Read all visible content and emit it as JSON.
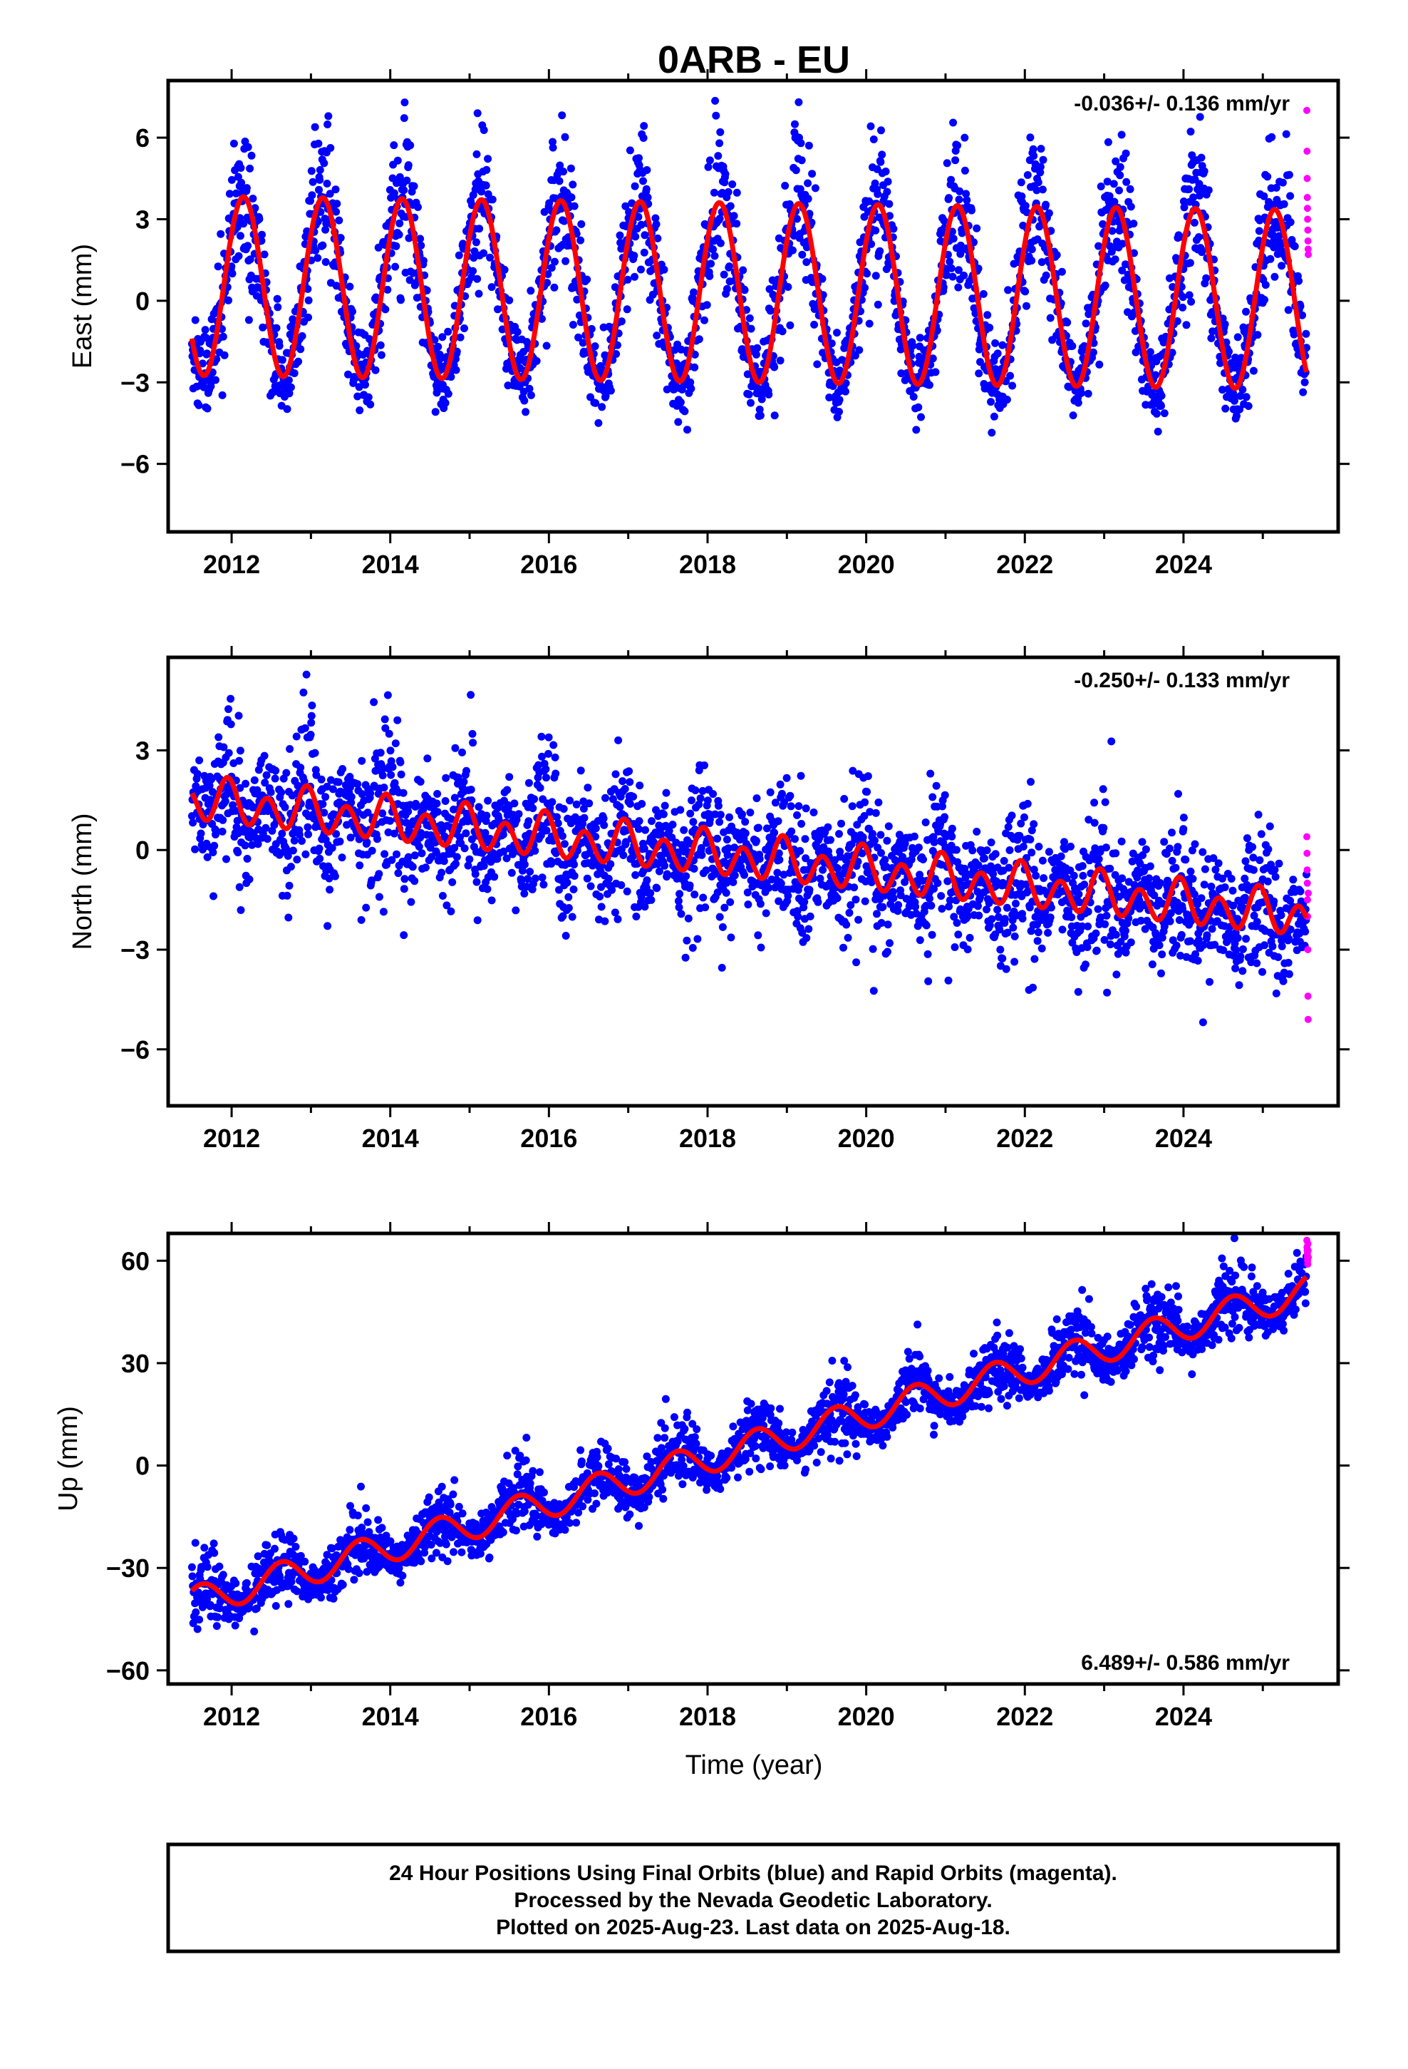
{
  "title": "0ARB - EU",
  "colors": {
    "final_orbits": "#0000ff",
    "rapid_orbits": "#ff00ff",
    "model": "#ff0000"
  },
  "chart_data": [
    {
      "type": "scatter",
      "panel": "east",
      "ylabel": "East (mm)",
      "xlabel": "",
      "rate_label": "-0.036+/- 0.136 mm/yr",
      "xlim": [
        2011.2,
        2025.95
      ],
      "ylim": [
        -8.5,
        8.1
      ],
      "yticks": [
        -6,
        -3,
        0,
        3,
        6
      ],
      "ytick_labels": [
        "−6",
        "−3",
        "0",
        "3",
        "6"
      ],
      "xticks": [
        2012,
        2014,
        2016,
        2018,
        2020,
        2022,
        2024
      ],
      "xtick_labels": [
        "2012",
        "2014",
        "2016",
        "2018",
        "2020",
        "2022",
        "2024"
      ],
      "series": [
        {
          "name": "Final Orbits",
          "color": "#0000ff",
          "summary": {
            "start": 2011.5,
            "end": 2025.55,
            "scatter_sd": 1.1
          }
        },
        {
          "name": "Rapid Orbits",
          "color": "#ff00ff",
          "values": [
            7.0,
            5.5,
            4.5,
            3.8,
            3.4,
            3.0,
            2.6,
            2.2,
            1.9,
            1.7
          ]
        },
        {
          "name": "Model",
          "color": "#ff0000",
          "model": {
            "offset": 0.3,
            "trend": -0.036,
            "t0": 2018.5,
            "annual_amp": 3.3,
            "annual_phase": 2018.15,
            "semiannual_amp": 0.0
          }
        }
      ]
    },
    {
      "type": "scatter",
      "panel": "north",
      "ylabel": "North (mm)",
      "xlabel": "",
      "rate_label": "-0.250+/- 0.133 mm/yr",
      "xlim": [
        2011.2,
        2025.95
      ],
      "ylim": [
        -7.7,
        5.8
      ],
      "yticks": [
        -6,
        -3,
        0,
        3
      ],
      "ytick_labels": [
        "−6",
        "−3",
        "0",
        "3"
      ],
      "xticks": [
        2012,
        2014,
        2016,
        2018,
        2020,
        2022,
        2024
      ],
      "xtick_labels": [
        "2012",
        "2014",
        "2016",
        "2018",
        "2020",
        "2022",
        "2024"
      ],
      "series": [
        {
          "name": "Final Orbits",
          "color": "#0000ff",
          "summary": {
            "start": 2011.5,
            "end": 2025.55,
            "scatter_sd": 1.0
          }
        },
        {
          "name": "Rapid Orbits",
          "color": "#ff00ff",
          "values": [
            0.4,
            -0.1,
            -0.6,
            -1.0,
            -1.5,
            -2.0,
            -3.0,
            -4.4,
            -5.1,
            -1.3
          ]
        },
        {
          "name": "Model",
          "color": "#ff0000",
          "model": {
            "offset": 1.5,
            "trend": -0.25,
            "t0": 2011.5,
            "annual_amp": 0.25,
            "annual_phase": 2011.95,
            "semiannual_amp": 0.55,
            "semiannual_phase": 2011.95
          }
        }
      ]
    },
    {
      "type": "scatter",
      "panel": "up",
      "ylabel": "Up (mm)",
      "xlabel": "Time (year)",
      "rate_label": "6.489+/- 0.586 mm/yr",
      "xlim": [
        2011.2,
        2025.95
      ],
      "ylim": [
        -64,
        68
      ],
      "yticks": [
        -60,
        -30,
        0,
        30,
        60
      ],
      "ytick_labels": [
        "−60",
        "−30",
        "0",
        "30",
        "60"
      ],
      "xticks": [
        2012,
        2014,
        2016,
        2018,
        2020,
        2022,
        2024
      ],
      "xtick_labels": [
        "2012",
        "2014",
        "2016",
        "2018",
        "2020",
        "2022",
        "2024"
      ],
      "series": [
        {
          "name": "Final Orbits",
          "color": "#0000ff",
          "summary": {
            "start": 2011.5,
            "end": 2025.55,
            "scatter_sd": 4.2
          }
        },
        {
          "name": "Rapid Orbits",
          "color": "#ff00ff",
          "values": [
            66,
            64,
            63,
            62,
            61,
            60,
            59,
            65,
            63,
            61
          ]
        },
        {
          "name": "Model",
          "color": "#ff0000",
          "model": {
            "offset": -40,
            "trend": 6.489,
            "t0": 2011.5,
            "annual_amp": 4.5,
            "annual_phase": 2011.62,
            "semiannual_amp": 0.0
          }
        }
      ]
    }
  ],
  "footer": {
    "line1": "24 Hour Positions Using Final Orbits (blue) and Rapid Orbits (magenta).",
    "line2": "Processed by the Nevada Geodetic Laboratory.",
    "line3": "Plotted on 2025-Aug-23. Last data on 2025-Aug-18."
  }
}
